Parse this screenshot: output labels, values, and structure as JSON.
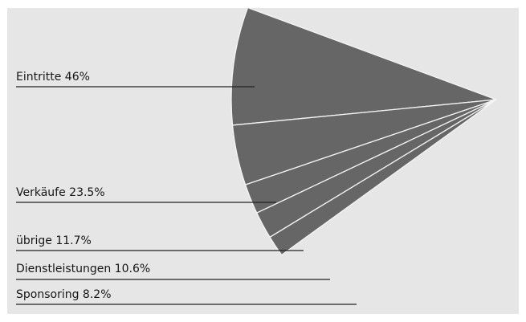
{
  "colors": {
    "slice_fill": "#666666",
    "slice_separator": "#f4f4f4",
    "background": "#e6e6e6",
    "text": "#161616",
    "leader_line": "#222222"
  },
  "chart_data": {
    "type": "pie",
    "title": "",
    "slices": [
      {
        "label": "Eintritte",
        "value": 46,
        "display": "Eintritte 46%"
      },
      {
        "label": "Verkäufe",
        "value": 23.5,
        "display": "Verkäufe 23.5%"
      },
      {
        "label": "übrige",
        "value": 11.7,
        "display": "übrige 11.7%"
      },
      {
        "label": "Dienstleistungen",
        "value": 10.6,
        "display": "Dienstleistungen 10.6%"
      },
      {
        "label": "Sponsoring",
        "value": 8.2,
        "display": "Sponsoring 8.2%"
      }
    ]
  }
}
